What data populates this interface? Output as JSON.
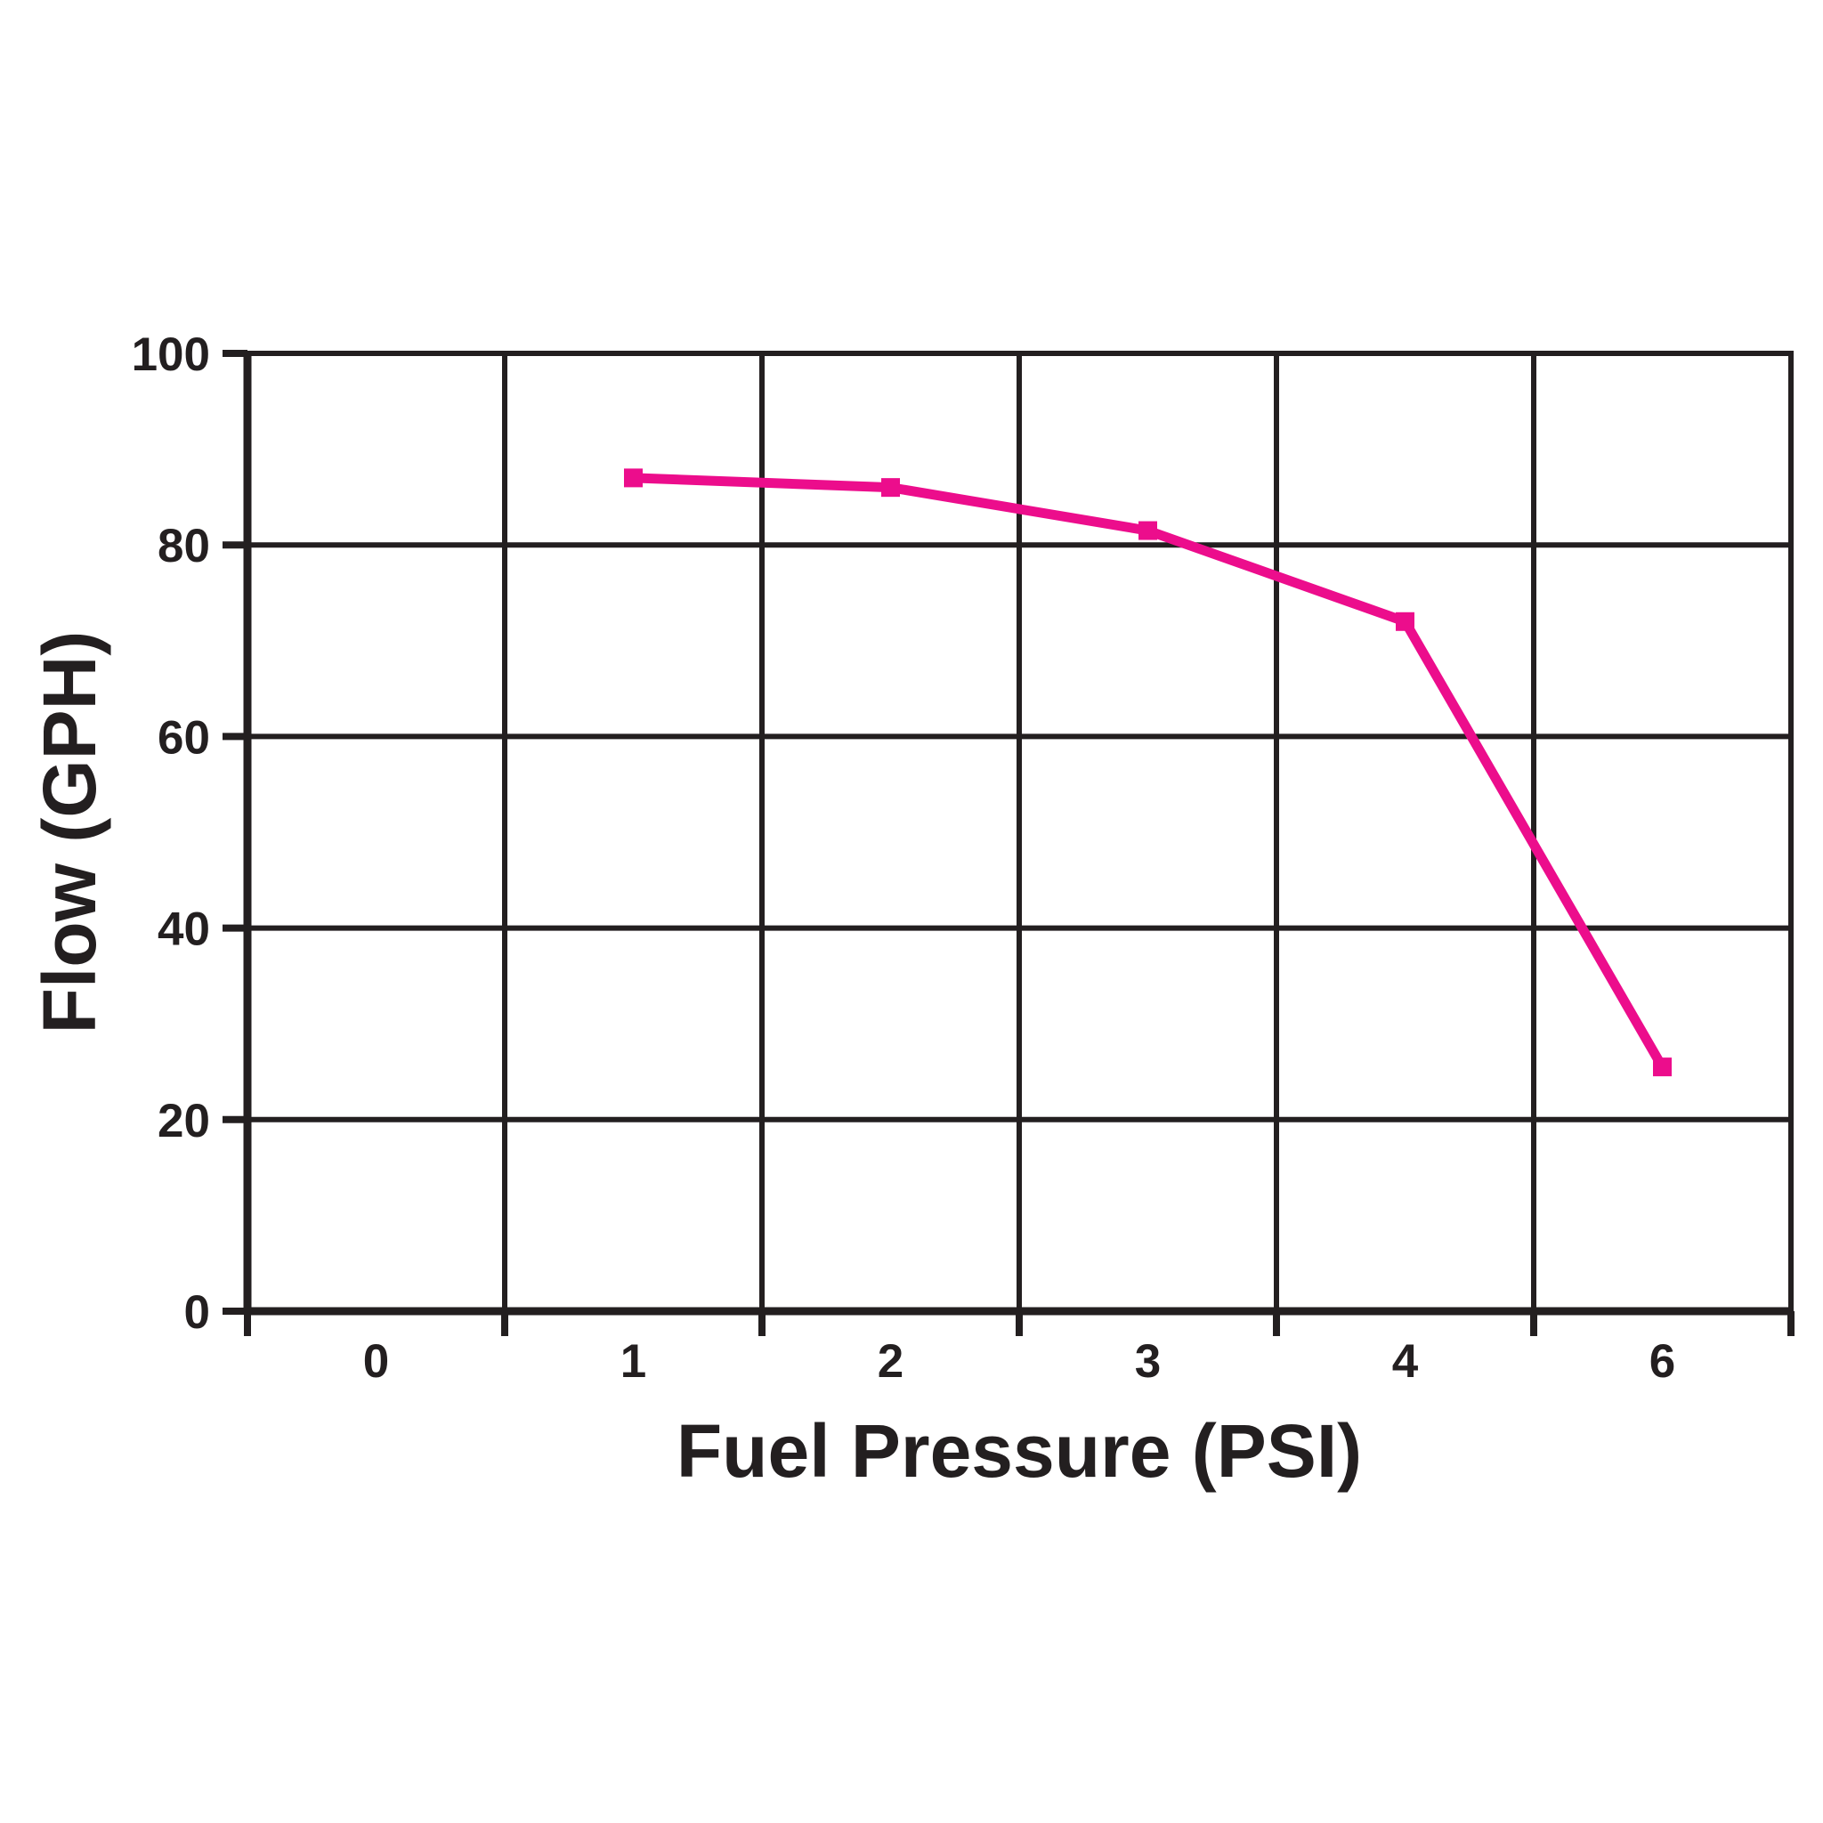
{
  "chart_data": {
    "type": "line",
    "xlabel": "Fuel Pressure (PSI)",
    "ylabel": "Flow (GPH)",
    "categories": [
      "0",
      "1",
      "2",
      "3",
      "4",
      "6"
    ],
    "y_tick_labels": [
      "100",
      "80",
      "60",
      "40",
      "20",
      "0"
    ],
    "ylim": [
      0,
      100
    ],
    "y_step": 20,
    "grid": true,
    "legend": false,
    "axis_color": "#231F20",
    "background_color": "#FFFFFF",
    "series": [
      {
        "name": "flow-vs-fuel-pressure",
        "color": "#EC0D8C",
        "marker": "square",
        "points": [
          {
            "category": "1",
            "value": 87
          },
          {
            "category": "2",
            "value": 86
          },
          {
            "category": "3",
            "value": 81.5
          },
          {
            "category": "4",
            "value": 72
          },
          {
            "category": "6",
            "value": 25.5
          }
        ]
      }
    ]
  }
}
